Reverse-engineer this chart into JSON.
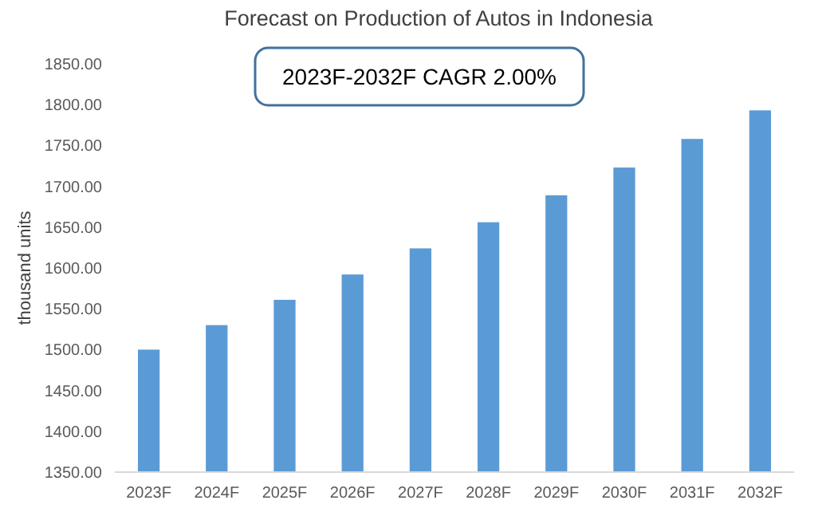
{
  "chart_data": {
    "type": "bar",
    "title": "Forecast on Production of Autos in Indonesia",
    "ylabel": "thousand units",
    "categories": [
      "2023F",
      "2024F",
      "2025F",
      "2026F",
      "2027F",
      "2028F",
      "2029F",
      "2030F",
      "2031F",
      "2032F"
    ],
    "values": [
      1500,
      1530,
      1561,
      1592,
      1624,
      1656,
      1689,
      1723,
      1758,
      1793
    ],
    "color": "#5b9bd5",
    "ylim": [
      1350,
      1850
    ],
    "yticks": [
      {
        "value": 1350,
        "label": "1350.00"
      },
      {
        "value": 1400,
        "label": "1400.00"
      },
      {
        "value": 1450,
        "label": "1450.00"
      },
      {
        "value": 1500,
        "label": "1500.00"
      },
      {
        "value": 1550,
        "label": "1550.00"
      },
      {
        "value": 1600,
        "label": "1600.00"
      },
      {
        "value": 1650,
        "label": "1650.00"
      },
      {
        "value": 1700,
        "label": "1700.00"
      },
      {
        "value": 1750,
        "label": "1750.00"
      },
      {
        "value": 1800,
        "label": "1800.00"
      },
      {
        "value": 1850,
        "label": "1850.00"
      }
    ],
    "grid": false,
    "annotations": [
      "2023F-2032F CAGR 2.00%"
    ]
  }
}
